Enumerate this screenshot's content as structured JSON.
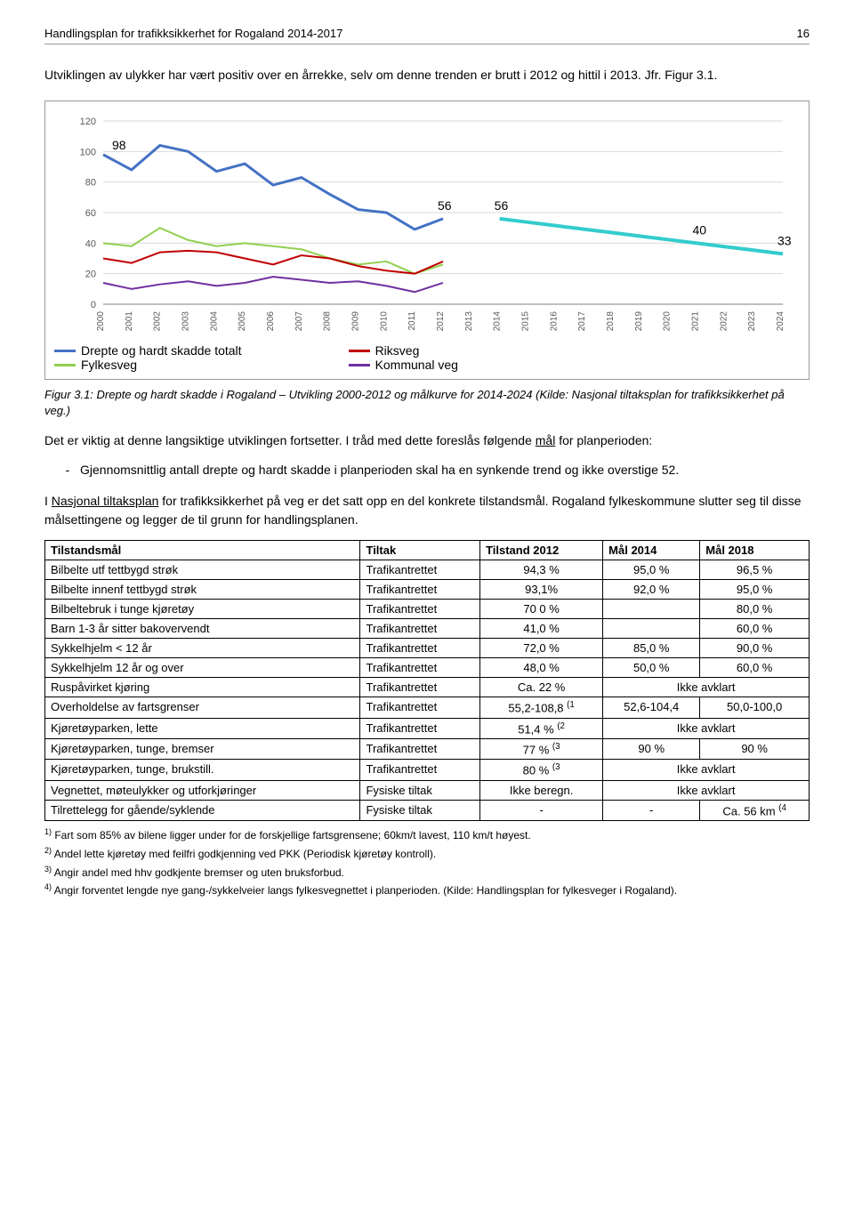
{
  "header": {
    "title": "Handlingsplan for trafikksikkerhet for Rogaland 2014-2017",
    "page": "16"
  },
  "intro": "Utviklingen av ulykker har vært positiv over en årrekke, selv om denne trenden er brutt i 2012 og hittil i 2013. Jfr. Figur 3.1.",
  "chart": {
    "type": "line",
    "ylim": [
      0,
      120
    ],
    "ytick_step": 20,
    "yticks": [
      "0",
      "20",
      "40",
      "60",
      "80",
      "100",
      "120"
    ],
    "xlabels": [
      "2000",
      "2001",
      "2002",
      "2003",
      "2004",
      "2005",
      "2006",
      "2007",
      "2008",
      "2009",
      "2010",
      "2011",
      "2012",
      "2013",
      "2014",
      "2015",
      "2016",
      "2017",
      "2018",
      "2019",
      "2020",
      "2021",
      "2022",
      "2023",
      "2024"
    ],
    "annotations": {
      "label_98": "98",
      "label_56a": "56",
      "label_56b": "56",
      "label_40": "40",
      "label_33": "33"
    },
    "series": {
      "totalt": {
        "label": "Drepte og hardt skadde totalt",
        "color": "#4472c4",
        "line_width": 3,
        "values": [
          98,
          88,
          104,
          100,
          87,
          92,
          78,
          83,
          72,
          62,
          60,
          49,
          56
        ]
      },
      "riksveg": {
        "label": "Riksveg",
        "color": "#c00000",
        "line_width": 2,
        "values": [
          30,
          27,
          34,
          35,
          34,
          30,
          26,
          32,
          30,
          25,
          22,
          20,
          28
        ]
      },
      "fylkesveg": {
        "label": "Fylkesveg",
        "color": "#92d050",
        "line_width": 2,
        "values": [
          40,
          38,
          50,
          42,
          38,
          40,
          38,
          36,
          30,
          26,
          28,
          20,
          26
        ]
      },
      "kommunal": {
        "label": "Kommunal veg",
        "color": "#7030a0",
        "line_width": 2,
        "values": [
          14,
          10,
          13,
          15,
          12,
          14,
          18,
          16,
          14,
          15,
          12,
          8,
          14
        ]
      },
      "target": {
        "label": "",
        "color": "#33cccc",
        "line_width": 4,
        "start_x": 14,
        "values": [
          56,
          53.7,
          51.4,
          49.1,
          46.8,
          44.5,
          42.2,
          39.9,
          37.6,
          35.3,
          33
        ]
      }
    },
    "background_color": "#ffffff",
    "grid_color": "#d9d9d9",
    "axis_color": "#808080",
    "label_fontsize": 11,
    "annotation_fontsize": 14
  },
  "caption": "Figur 3.1: Drepte og hardt skadde i Rogaland – Utvikling 2000-2012 og målkurve for 2014-2024 (Kilde: Nasjonal tiltaksplan for trafikksikkerhet på veg.)",
  "para1_a": "Det er viktig at denne langsiktige utviklingen fortsetter. I tråd med dette foreslås følgende ",
  "para1_u": "mål",
  "para1_b": " for planperioden:",
  "goal_bullet_prefix": "-",
  "goal_text": "Gjennomsnittlig antall drepte og hardt skadde i planperioden skal ha en synkende trend og ikke overstige 52.",
  "para2_a": "I ",
  "para2_u": "Nasjonal tiltaksplan",
  "para2_b": " for trafikksikkerhet på veg er det satt opp en del konkrete tilstandsmål. Rogaland fylkeskommune slutter seg til disse målsettingene og legger de til grunn for handlingsplanen.",
  "table": {
    "headers": [
      "Tilstandsmål",
      "Tiltak",
      "Tilstand 2012",
      "Mål 2014",
      "Mål 2018"
    ],
    "rows": [
      [
        "Bilbelte utf tettbygd strøk",
        "Trafikantrettet",
        "94,3 %",
        "95,0 %",
        "96,5 %"
      ],
      [
        "Bilbelte innenf tettbygd strøk",
        "Trafikantrettet",
        "93,1%",
        "92,0 %",
        "95,0 %"
      ],
      [
        "Bilbeltebruk i tunge kjøretøy",
        "Trafikantrettet",
        "70 0 %",
        "",
        "80,0 %"
      ],
      [
        "Barn 1-3 år sitter bakovervendt",
        "Trafikantrettet",
        "41,0 %",
        "",
        "60,0 %"
      ],
      [
        "Sykkelhjelm < 12 år",
        "Trafikantrettet",
        "72,0 %",
        "85,0 %",
        "90,0 %"
      ],
      [
        "Sykkelhjelm 12 år og over",
        "Trafikantrettet",
        "48,0 %",
        "50,0 %",
        "60,0 %"
      ],
      [
        "Ruspåvirket kjøring",
        "Trafikantrettet",
        "Ca. 22 %",
        "Ikke avklart",
        ""
      ],
      [
        "Overholdelse av fartsgrenser",
        "Trafikantrettet",
        "55,2-108,8 (1",
        "52,6-104,4",
        "50,0-100,0"
      ],
      [
        "Kjøretøyparken, lette",
        "Trafikantrettet",
        "51,4 % (2",
        "Ikke avklart",
        ""
      ],
      [
        "Kjøretøyparken, tunge, bremser",
        "Trafikantrettet",
        "77 % (3",
        "90 %",
        "90 %"
      ],
      [
        "Kjøretøyparken, tunge, brukstill.",
        "Trafikantrettet",
        "80 % (3",
        "Ikke avklart",
        ""
      ],
      [
        "Vegnettet, møteulykker og utforkjøringer",
        "Fysiske tiltak",
        "Ikke beregn.",
        "Ikke avklart",
        ""
      ],
      [
        "Tilrettelegg for gående/syklende",
        "Fysiske tiltak",
        "-",
        "-",
        "Ca. 56 km (4"
      ]
    ],
    "span_rows": [
      6,
      8,
      10,
      11
    ]
  },
  "footnotes": [
    "1) Fart som 85% av bilene ligger under for de forskjellige fartsgrensene; 60km/t lavest, 110 km/t høyest.",
    "2) Andel lette kjøretøy med feilfri godkjenning ved PKK (Periodisk kjøretøy kontroll).",
    "3) Angir andel med hhv godkjente bremser og uten bruksforbud.",
    "4) Angir forventet lengde nye gang-/sykkelveier langs fylkesvegnettet i planperioden. (Kilde: Handlingsplan for fylkesveger i Rogaland)."
  ]
}
